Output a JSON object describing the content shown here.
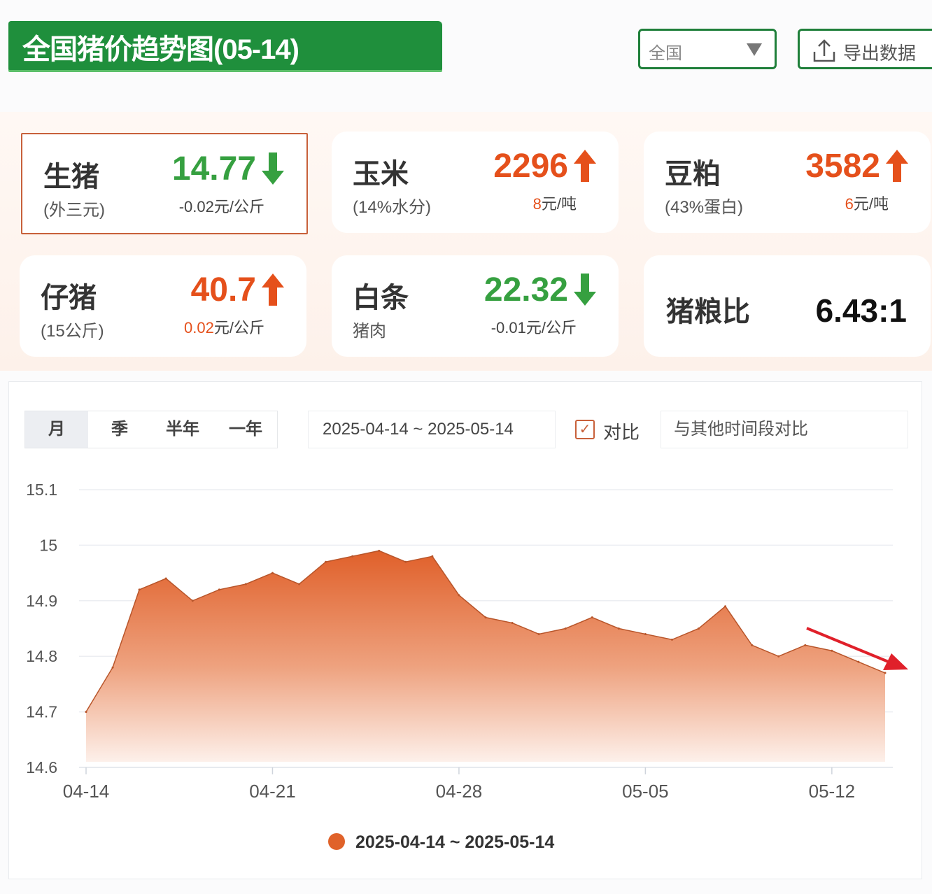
{
  "header": {
    "title": "全国猪价趋势图(05-14)",
    "region_select": "全国",
    "export_label": "导出数据"
  },
  "colors": {
    "brand_green": "#1f8f3c",
    "up": "#e5501b",
    "down": "#36a040",
    "series": "#e0622a",
    "annotation_arrow": "#e0202a"
  },
  "cards": [
    {
      "name": "生猪",
      "sub": "(外三元)",
      "value": "14.77",
      "direction": "down",
      "change": "-0.02",
      "unit": "元/公斤",
      "selected": true
    },
    {
      "name": "玉米",
      "sub": "(14%水分)",
      "value": "2296",
      "direction": "up",
      "change": "8",
      "unit": "元/吨"
    },
    {
      "name": "豆粕",
      "sub": "(43%蛋白)",
      "value": "3582",
      "direction": "up",
      "change": "6",
      "unit": "元/吨"
    },
    {
      "name": "仔猪",
      "sub": "(15公斤)",
      "value": "40.7",
      "direction": "up",
      "change": "0.02",
      "unit": "元/公斤"
    },
    {
      "name": "白条",
      "sub": "猪肉",
      "value": "22.32",
      "direction": "down",
      "change": "-0.01",
      "unit": "元/公斤"
    },
    {
      "name": "猪粮比",
      "value": "6.43:1"
    }
  ],
  "controls": {
    "periods": [
      "月",
      "季",
      "半年",
      "一年"
    ],
    "active_period": "月",
    "date_range": "2025-04-14 ~ 2025-05-14",
    "compare_label": "对比",
    "compare_checked": true,
    "compare_placeholder": "与其他时间段对比"
  },
  "chart_data": {
    "type": "area",
    "x": [
      "04-14",
      "04-15",
      "04-16",
      "04-17",
      "04-18",
      "04-19",
      "04-20",
      "04-21",
      "04-22",
      "04-23",
      "04-24",
      "04-25",
      "04-26",
      "04-27",
      "04-28",
      "04-29",
      "04-30",
      "05-01",
      "05-02",
      "05-03",
      "05-04",
      "05-05",
      "05-06",
      "05-07",
      "05-08",
      "05-09",
      "05-10",
      "05-11",
      "05-12",
      "05-13",
      "05-14"
    ],
    "series": [
      {
        "name": "2025-04-14 ~ 2025-05-14",
        "values": [
          14.7,
          14.78,
          14.92,
          14.94,
          14.9,
          14.92,
          14.93,
          14.95,
          14.93,
          14.97,
          14.98,
          14.99,
          14.97,
          14.98,
          14.91,
          14.87,
          14.86,
          14.84,
          14.85,
          14.87,
          14.85,
          14.84,
          14.83,
          14.85,
          14.89,
          14.82,
          14.8,
          14.82,
          14.81,
          14.79,
          14.77
        ]
      }
    ],
    "x_tick_labels": [
      "04-14",
      "04-21",
      "04-28",
      "05-05",
      "05-12"
    ],
    "y_tick_labels": [
      "14.6",
      "14.7",
      "14.8",
      "14.9",
      "15",
      "15.1"
    ],
    "ylim": [
      14.6,
      15.1
    ],
    "grid": true,
    "legend": "bottom-center",
    "annotation": "red arrow pointing down-right at end of series"
  }
}
